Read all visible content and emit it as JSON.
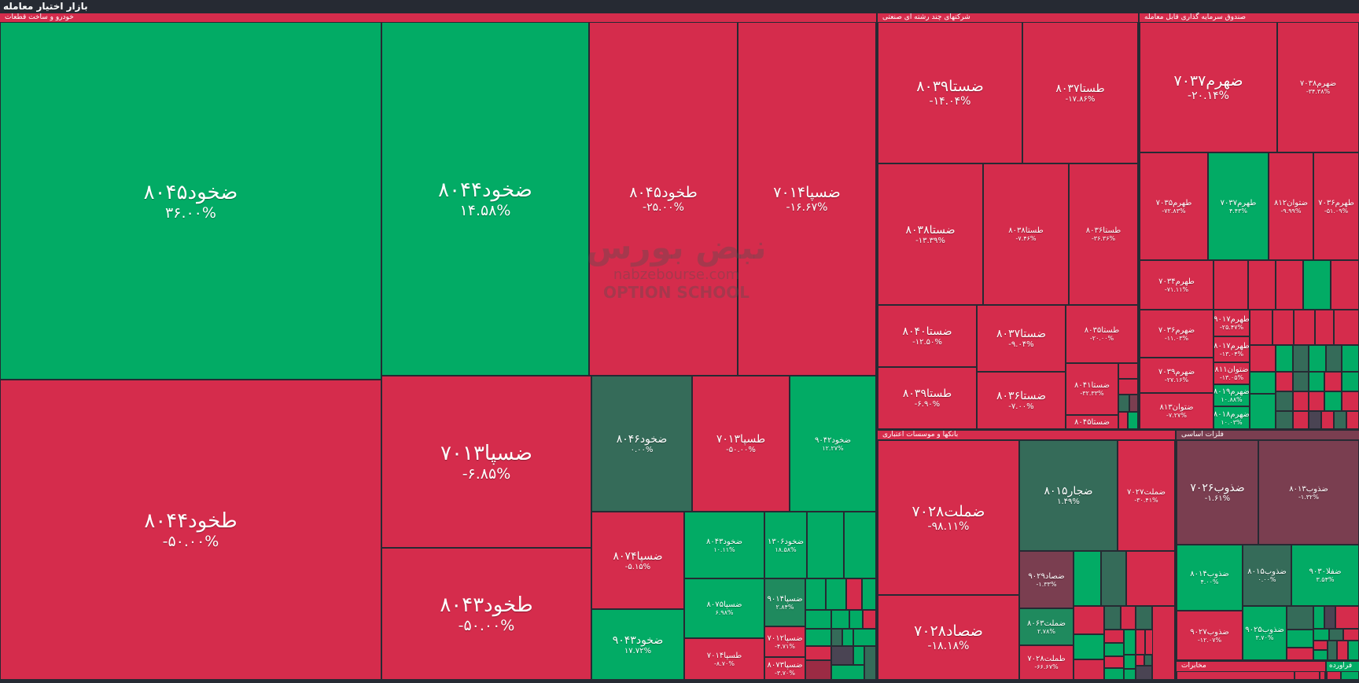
{
  "title": "بازار اختیار معامله",
  "watermark": {
    "logo": "نبض بورس",
    "site": "nabzebourse.com",
    "school": "OPTION SCHOOL"
  },
  "colors": {
    "negative": "#d52c4c",
    "positive": "#02ab65",
    "neutral": "#356b59",
    "slight_negative": "#7a3e50",
    "background": "#262a33"
  },
  "autos": {
    "name": "خودرو و ساخت قطعات",
    "tiles": [
      {
        "symbol": "ضخود۸۰۴۵",
        "change": "۳۶.۰۰%"
      },
      {
        "symbol": "ضخود۸۰۴۴",
        "change": "۱۴.۵۸%"
      },
      {
        "symbol": "طخود۸۰۴۵",
        "change": "-۲۵.۰۰%"
      },
      {
        "symbol": "ضسپا۷۰۱۴",
        "change": "-۱۶.۶۷%"
      },
      {
        "symbol": "طخود۸۰۴۴",
        "change": "-۵۰.۰۰%"
      },
      {
        "symbol": "ضسپا۷۰۱۳",
        "change": "-۶.۸۵%"
      },
      {
        "symbol": "طخود۸۰۴۳",
        "change": "-۵۰.۰۰%"
      },
      {
        "symbol": "ضخود۸۰۴۶",
        "change": "۰.۰۰%"
      },
      {
        "symbol": "طسپا۷۰۱۳",
        "change": "-۵۰.۰۰%"
      },
      {
        "symbol": "ضخود۹۰۴۲",
        "change": "۱۲.۲۷%"
      },
      {
        "symbol": "ضسپا۸۰۷۴",
        "change": "-۵.۱۵%"
      },
      {
        "symbol": "ضخود۹۰۴۳",
        "change": "۱۷.۷۲%"
      },
      {
        "symbol": "ضخود۸۰۴۳",
        "change": "۱۰.۱۱%"
      },
      {
        "symbol": "ضسپا۸۰۷۵",
        "change": "۶.۹۸%"
      },
      {
        "symbol": "طسپا۷۰۱۴",
        "change": "-۸.۷۰%"
      },
      {
        "symbol": "ضخود۱۳۰۶",
        "change": "۱۸.۵۸%"
      },
      {
        "symbol": "ضسپا۹۰۱۴",
        "change": "۲.۸۴%"
      },
      {
        "symbol": "ضسپا۷۰۱۲",
        "change": "-۴.۷۱%"
      },
      {
        "symbol": "ضسپا۸۰۷۳",
        "change": "-۳.۷۰%"
      }
    ]
  },
  "industrial": {
    "name": "شرکتهای چند رشته ای صنعتی",
    "tiles": [
      {
        "symbol": "ضستا۸۰۳۹",
        "change": "-۱۴.۰۴%"
      },
      {
        "symbol": "طستا۸۰۳۷",
        "change": "-۱۷.۸۶%"
      },
      {
        "symbol": "ضستا۸۰۳۸",
        "change": "-۱۳.۳۹%"
      },
      {
        "symbol": "طستا۸۰۳۸",
        "change": "-۷.۴۶%"
      },
      {
        "symbol": "طستا۸۰۳۶",
        "change": "-۳۶.۳۶%"
      },
      {
        "symbol": "ضستا۸۰۴۰",
        "change": "-۱۲.۵۰%"
      },
      {
        "symbol": "طستا۸۰۳۹",
        "change": "-۶.۹۰%"
      },
      {
        "symbol": "ضستا۸۰۳۷",
        "change": "-۹.۰۴%"
      },
      {
        "symbol": "ضستا۸۰۳۶",
        "change": "-۷.۰۰%"
      },
      {
        "symbol": "طستا۸۰۳۵",
        "change": "-۲۰.۰۰%"
      },
      {
        "symbol": "ضستا۸۰۴۱",
        "change": "-۳۲.۳۳%"
      },
      {
        "symbol": "ضستا۸۰۴۵",
        "change": ""
      }
    ]
  },
  "etf": {
    "name": "صندوق سرمایه گذاری قابل معامله",
    "tiles": [
      {
        "symbol": "ضهرم۷۰۳۷",
        "change": "-۲۰.۱۴%"
      },
      {
        "symbol": "ضهرم۷۰۳۸",
        "change": "-۳۴.۳۸%"
      },
      {
        "symbol": "طهرم۷۰۳۵",
        "change": "-۷۲.۸۳%"
      },
      {
        "symbol": "طهرم۷۰۳۷",
        "change": "۴.۴۳%"
      },
      {
        "symbol": "ضتوان۸۱۲",
        "change": "-۹.۹۹%"
      },
      {
        "symbol": "طهرم۷۰۳۶",
        "change": "-۵۱.۰۹%"
      },
      {
        "symbol": "طهرم۷۰۳۴",
        "change": "-۷۱.۱۱%"
      },
      {
        "symbol": "ضهرم۷۰۳۶",
        "change": "-۱۱.۰۳%"
      },
      {
        "symbol": "ضهرم۷۰۳۹",
        "change": "-۲۷.۱۶%"
      },
      {
        "symbol": "ضتوان۸۱۳",
        "change": "-۷.۲۷%"
      },
      {
        "symbol": "طهرم۹۰۱۷",
        "change": "-۲۵.۴۷%"
      },
      {
        "symbol": "طهرم۸۰۱۷",
        "change": "-۱۳.۰۴%"
      },
      {
        "symbol": "ضتوان۸۱۱",
        "change": "-۱۳.۰۵%"
      },
      {
        "symbol": "ضهرم۸۰۱۹",
        "change": "۱۰.۸۸%"
      },
      {
        "symbol": "ضهرم۸۰۱۸",
        "change": "۱۰.۰۳%"
      }
    ]
  },
  "banks": {
    "name": "بانکها و موسسات اعتباری",
    "tiles": [
      {
        "symbol": "ضملت۷۰۲۸",
        "change": "-۹۸.۱۱%"
      },
      {
        "symbol": "ضصاد۷۰۲۸",
        "change": "-۱۸.۱۸%"
      },
      {
        "symbol": "ضجار۸۰۱۵",
        "change": "۱.۴۹%"
      },
      {
        "symbol": "ضملت۷۰۲۷",
        "change": "-۳۰.۴۱%"
      },
      {
        "symbol": "ضصاد۹۰۲۹",
        "change": "-۱.۳۳%"
      },
      {
        "symbol": "ضملت۸۰۶۳",
        "change": "۲.۷۸%"
      },
      {
        "symbol": "طملت۷۰۲۸",
        "change": "-۶۶.۶۷%"
      }
    ]
  },
  "metals": {
    "name": "فلزات اساسی",
    "tiles": [
      {
        "symbol": "ضذوب۷۰۲۶",
        "change": "-۱.۶۱%"
      },
      {
        "symbol": "ضذوب۸۰۱۳",
        "change": "-۱.۳۲%"
      },
      {
        "symbol": "ضذوب۸۰۱۴",
        "change": "۴.۰۰%"
      },
      {
        "symbol": "ضذوب۸۰۱۵",
        "change": "۰.۰۰%"
      },
      {
        "symbol": "ضفلا۹۰۳۰",
        "change": "۳.۵۴%"
      },
      {
        "symbol": "ضذوب۹۰۲۷",
        "change": "-۱۲.۰۷%"
      },
      {
        "symbol": "ضذوب۹۰۲۵",
        "change": "۳.۷۰%"
      }
    ]
  },
  "telecom": {
    "name": "مخابرات"
  },
  "refinery": {
    "name": "فراورده"
  }
}
